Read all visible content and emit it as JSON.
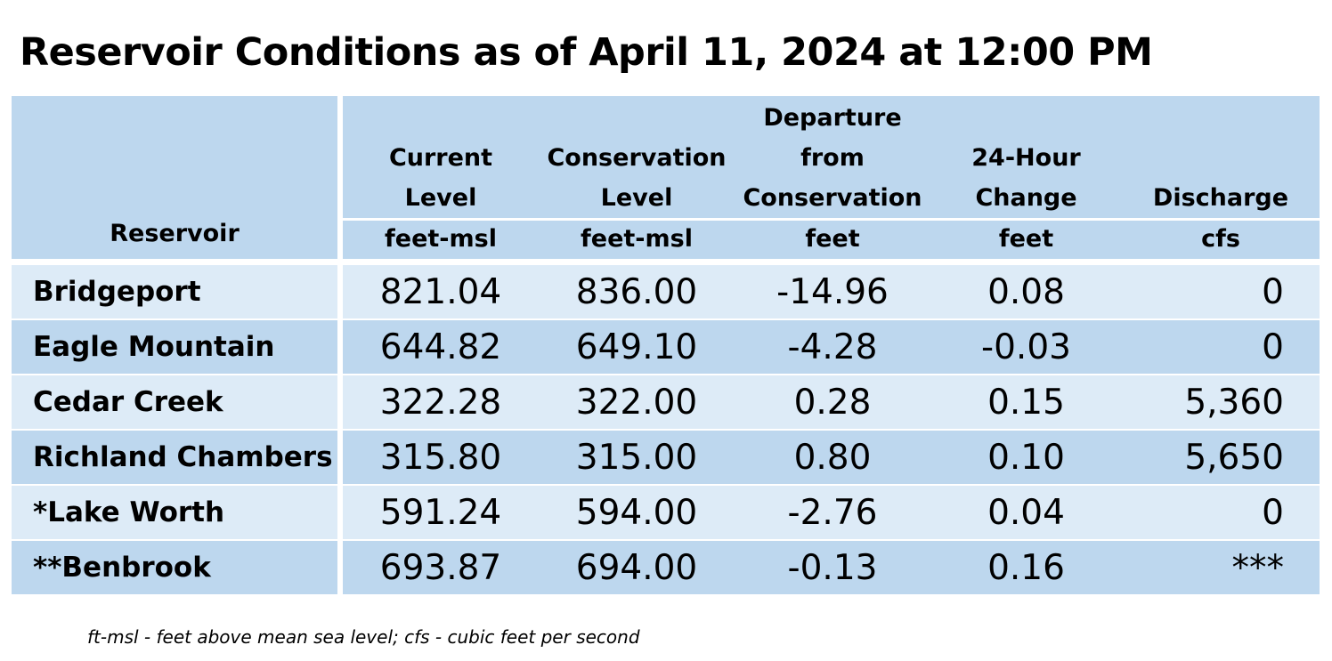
{
  "title": "Reservoir Conditions as of April 11, 2024 at 12:00 PM",
  "headers": {
    "reservoir": "Reservoir",
    "current_level": [
      "Current",
      "Level"
    ],
    "conservation_level": [
      "Conservation",
      "Level"
    ],
    "departure": [
      "Departure",
      "from",
      "Conservation"
    ],
    "change_24h": [
      "24-Hour",
      "Change"
    ],
    "discharge": [
      "Discharge"
    ]
  },
  "units": {
    "current_level": "feet-msl",
    "conservation_level": "feet-msl",
    "departure": "feet",
    "change_24h": "feet",
    "discharge": "cfs"
  },
  "rows": [
    {
      "name": "Bridgeport",
      "current": "821.04",
      "conservation": "836.00",
      "departure": "-14.96",
      "change": "0.08",
      "discharge": "0"
    },
    {
      "name": "Eagle Mountain",
      "current": "644.82",
      "conservation": "649.10",
      "departure": "-4.28",
      "change": "-0.03",
      "discharge": "0"
    },
    {
      "name": "Cedar Creek",
      "current": "322.28",
      "conservation": "322.00",
      "departure": "0.28",
      "change": "0.15",
      "discharge": "5,360"
    },
    {
      "name": "Richland Chambers",
      "current": "315.80",
      "conservation": "315.00",
      "departure": "0.80",
      "change": "0.10",
      "discharge": "5,650"
    },
    {
      "name": "*Lake Worth",
      "current": "591.24",
      "conservation": "594.00",
      "departure": "-2.76",
      "change": "0.04",
      "discharge": "0"
    },
    {
      "name": "**Benbrook",
      "current": "693.87",
      "conservation": "694.00",
      "departure": "-0.13",
      "change": "0.16",
      "discharge": "***"
    }
  ],
  "footnote": "ft-msl - feet above mean sea level; cfs - cubic feet per second",
  "colors": {
    "header_bg": "#bdd7ee",
    "row_light": "#ddebf7",
    "row_dark": "#bdd7ee",
    "divider": "#ffffff"
  }
}
